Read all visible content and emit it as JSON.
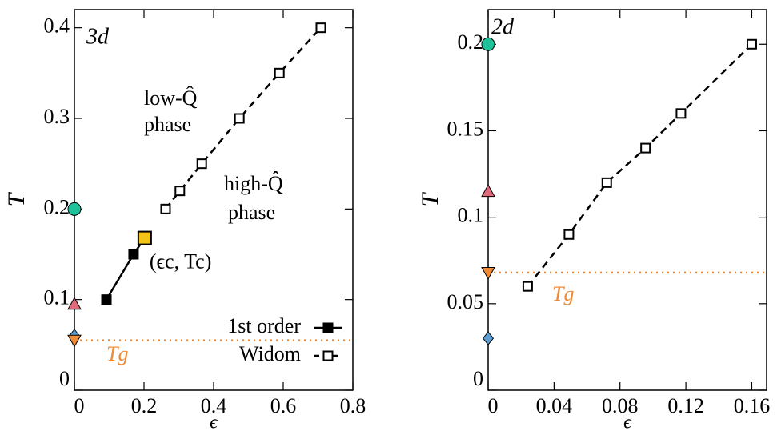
{
  "chart_data": [
    {
      "type": "scatter",
      "label": "3d",
      "xlabel": "ϵ",
      "ylabel": "T",
      "xlim": [
        0,
        0.8
      ],
      "ylim": [
        0,
        0.42
      ],
      "xticks": [
        0,
        0.2,
        0.4,
        0.6,
        0.8
      ],
      "yticks": [
        0,
        0.1,
        0.2,
        0.3,
        0.4
      ],
      "legend": "lower right",
      "series": [
        {
          "name": "1st order",
          "color": "#000000",
          "marker": "filled-square",
          "line": "solid",
          "x": [
            0.092,
            0.17,
            0.202
          ],
          "values": [
            0.1,
            0.15,
            0.168
          ]
        },
        {
          "name": "Widom",
          "color": "#000000",
          "marker": "open-square",
          "line": "dashed",
          "x": [
            0.262,
            0.303,
            0.366,
            0.474,
            0.589,
            0.708
          ],
          "values": [
            0.2,
            0.22,
            0.25,
            0.3,
            0.35,
            0.4
          ]
        }
      ],
      "critical_point": {
        "label": "(ϵc, Tc)",
        "color": "#f2c418",
        "x": 0.202,
        "value": 0.168
      },
      "axis_markers": [
        {
          "shape": "circle",
          "color": "#1fc29a",
          "value": 0.2
        },
        {
          "shape": "triangle-up",
          "color": "#e0697a",
          "value": 0.095
        },
        {
          "shape": "diamond",
          "color": "#5c9fd6",
          "value": 0.06
        },
        {
          "shape": "triangle-down",
          "color": "#f08a35",
          "value": 0.055
        }
      ],
      "tg": {
        "label": "Tg",
        "value": 0.055,
        "color": "#f08a35"
      },
      "annotations": [
        "low-Q̂",
        "phase",
        "high-Q̂",
        "phase"
      ]
    },
    {
      "type": "scatter",
      "label": "2d",
      "xlabel": "ϵ",
      "ylabel": "T",
      "xlim": [
        0,
        0.169
      ],
      "ylim": [
        0,
        0.22
      ],
      "xticks": [
        0,
        0.04,
        0.08,
        0.12,
        0.16
      ],
      "yticks": [
        0,
        0.05,
        0.1,
        0.15,
        0.2
      ],
      "series": [
        {
          "color": "#000000",
          "marker": "open-square",
          "line": "dashed",
          "x": [
            0.024,
            0.049,
            0.072,
            0.0955,
            0.117,
            0.16
          ],
          "values": [
            0.06,
            0.09,
            0.12,
            0.14,
            0.16,
            0.2
          ]
        }
      ],
      "axis_markers": [
        {
          "shape": "circle",
          "color": "#1fc29a",
          "value": 0.2
        },
        {
          "shape": "triangle-up",
          "color": "#e0697a",
          "value": 0.115
        },
        {
          "shape": "triangle-down",
          "color": "#f08a35",
          "value": 0.068
        },
        {
          "shape": "diamond",
          "color": "#5c9fd6",
          "value": 0.03
        }
      ],
      "tg": {
        "label": "Tg",
        "value": 0.068,
        "color": "#f08a35"
      },
      "annotations": []
    }
  ]
}
